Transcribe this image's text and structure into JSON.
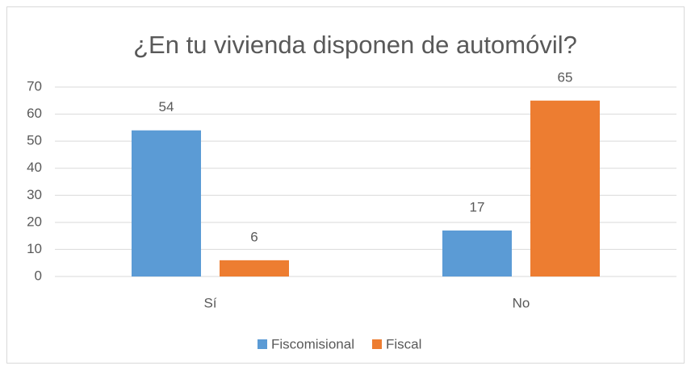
{
  "chart_data": {
    "type": "bar",
    "title": "¿En tu vivienda disponen de automóvil?",
    "categories": [
      "Sí",
      "No"
    ],
    "series": [
      {
        "name": "Fiscomisional",
        "color": "#5b9bd5",
        "values": [
          54,
          17
        ]
      },
      {
        "name": "Fiscal",
        "color": "#ed7d31",
        "values": [
          6,
          65
        ]
      }
    ],
    "ylim": [
      0,
      70
    ],
    "yticks": [
      0,
      10,
      20,
      30,
      40,
      50,
      60,
      70
    ],
    "grid": true,
    "legend": "bottom"
  }
}
